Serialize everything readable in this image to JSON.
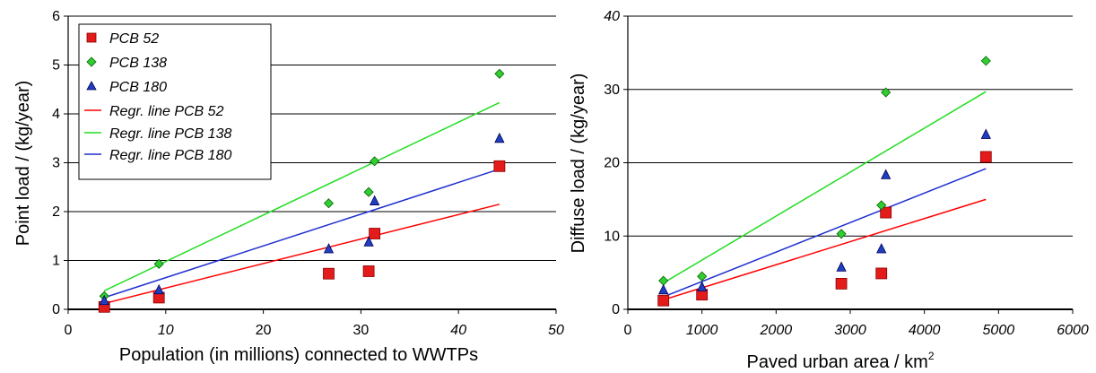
{
  "chart_data": [
    {
      "type": "scatter",
      "title": "",
      "xlabel": "Population (in millions) connected to WWTPs",
      "ylabel": "Point load / (kg/year)",
      "xlim": [
        0,
        50
      ],
      "ylim": [
        0,
        6
      ],
      "xticks": [
        0,
        10,
        20,
        30,
        40,
        50
      ],
      "xtick_italic": [
        false,
        true,
        false,
        false,
        true,
        true
      ],
      "yticks": [
        0,
        1,
        2,
        3,
        4,
        5,
        6
      ],
      "grid": "horizontal",
      "legend": "top-left",
      "series": [
        {
          "name": "PCB 52",
          "marker": "square",
          "color": "#e31b1b",
          "points": [
            [
              3.7,
              0.05
            ],
            [
              9.3,
              0.24
            ],
            [
              26.7,
              0.73
            ],
            [
              30.8,
              0.78
            ],
            [
              31.4,
              1.55
            ],
            [
              44.2,
              2.93
            ]
          ]
        },
        {
          "name": "PCB 138",
          "marker": "diamond",
          "color": "#33cc33",
          "points": [
            [
              3.7,
              0.27
            ],
            [
              9.3,
              0.93
            ],
            [
              26.7,
              2.17
            ],
            [
              30.8,
              2.4
            ],
            [
              31.4,
              3.03
            ],
            [
              44.2,
              4.82
            ]
          ]
        },
        {
          "name": "PCB 180",
          "marker": "triangle",
          "color": "#1f3fbf",
          "points": [
            [
              3.7,
              0.17
            ],
            [
              9.3,
              0.39
            ],
            [
              26.7,
              1.23
            ],
            [
              30.8,
              1.37
            ],
            [
              31.4,
              2.21
            ],
            [
              44.2,
              3.49
            ]
          ]
        }
      ],
      "regression": [
        {
          "name": "Regr. line PCB 52",
          "color": "#ff0000",
          "from": [
            3.7,
            0.12
          ],
          "to": [
            44.2,
            2.15
          ]
        },
        {
          "name": "Regr. line PCB 138",
          "color": "#22dd22",
          "from": [
            3.7,
            0.38
          ],
          "to": [
            44.2,
            4.23
          ]
        },
        {
          "name": "Regr. line PCB 180",
          "color": "#1f2fd0",
          "from": [
            3.7,
            0.24
          ],
          "to": [
            44.2,
            2.87
          ]
        }
      ]
    },
    {
      "type": "scatter",
      "title": "",
      "xlabel": "Paved urban area / km",
      "xlabel_sup": "2",
      "ylabel": "Diffuse load / (kg/year)",
      "xlim": [
        0,
        6000
      ],
      "ylim": [
        0,
        40
      ],
      "xticks": [
        0,
        1000,
        2000,
        3000,
        4000,
        5000,
        6000
      ],
      "xtick_italic": [
        false,
        true,
        true,
        true,
        true,
        true,
        true
      ],
      "yticks": [
        0,
        10,
        20,
        30,
        40
      ],
      "ytick_italic": [
        false,
        false,
        false,
        false,
        true
      ],
      "grid": "horizontal",
      "legend": "none",
      "series": [
        {
          "name": "PCB 52",
          "marker": "square",
          "color": "#e31b1b",
          "points": [
            [
              480,
              1.2
            ],
            [
              1000,
              2.0
            ],
            [
              2880,
              3.5
            ],
            [
              3420,
              4.9
            ],
            [
              3480,
              13.2
            ],
            [
              4830,
              20.8
            ]
          ]
        },
        {
          "name": "PCB 138",
          "marker": "diamond",
          "color": "#33cc33",
          "points": [
            [
              480,
              3.9
            ],
            [
              1000,
              4.5
            ],
            [
              2880,
              10.3
            ],
            [
              3420,
              14.2
            ],
            [
              3480,
              29.6
            ],
            [
              4830,
              33.9
            ]
          ]
        },
        {
          "name": "PCB 180",
          "marker": "triangle",
          "color": "#1f3fbf",
          "points": [
            [
              480,
              2.6
            ],
            [
              1000,
              3.0
            ],
            [
              2880,
              5.7
            ],
            [
              3420,
              8.2
            ],
            [
              3480,
              18.3
            ],
            [
              4830,
              23.8
            ]
          ]
        }
      ],
      "regression": [
        {
          "name": "Regr. line PCB 52",
          "color": "#ff0000",
          "from": [
            480,
            1.3
          ],
          "to": [
            4830,
            15.0
          ]
        },
        {
          "name": "Regr. line PCB 138",
          "color": "#22dd22",
          "from": [
            480,
            3.6
          ],
          "to": [
            4830,
            29.7
          ]
        },
        {
          "name": "Regr. line PCB 180",
          "color": "#1f2fd0",
          "from": [
            480,
            1.7
          ],
          "to": [
            4830,
            19.2
          ]
        }
      ]
    }
  ]
}
